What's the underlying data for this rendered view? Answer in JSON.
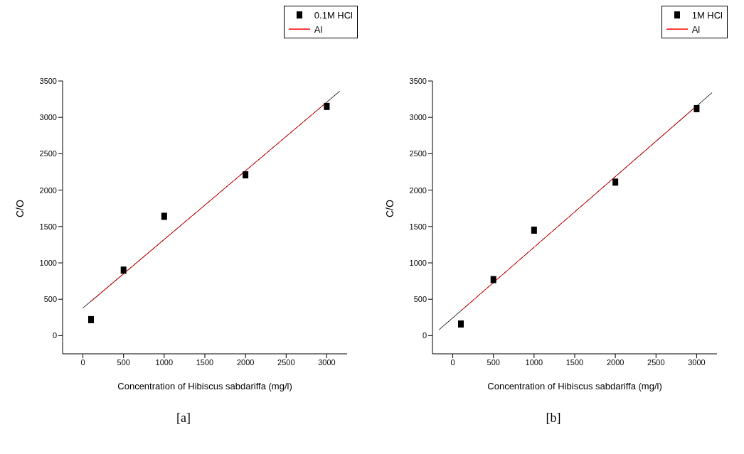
{
  "chart_data": [
    {
      "type": "scatter",
      "xlabel": "Concentration of Hibiscus sabdariffa (mg/l)",
      "ylabel": "C/O",
      "xlim": [
        -250,
        3250
      ],
      "ylim": [
        -250,
        3500
      ],
      "xticks": [
        0,
        500,
        1000,
        1500,
        2000,
        2500,
        3000
      ],
      "yticks": [
        0,
        500,
        1000,
        1500,
        2000,
        2500,
        3000,
        3500
      ],
      "grid": false,
      "legend": "top right",
      "annotations": [
        "[a]"
      ],
      "series": [
        {
          "type": "line",
          "color": "#000000",
          "x": [
            0,
            3160
          ],
          "values": [
            380,
            3360
          ]
        },
        {
          "name": "0.1M HCl",
          "color": "#000000",
          "marker": "square",
          "x": [
            100,
            500,
            1000,
            2000,
            3000
          ],
          "values": [
            220,
            900,
            1640,
            2210,
            3150
          ]
        },
        {
          "type": "line",
          "name": "Al",
          "color": "#ff0000",
          "x": [
            100,
            3000
          ],
          "values": [
            470,
            3210
          ]
        }
      ]
    },
    {
      "type": "scatter",
      "xlabel": "Concentration of Hibiscus sabdariffa (mg/l)",
      "ylabel": "C/O",
      "xlim": [
        -250,
        3250
      ],
      "ylim": [
        -250,
        3500
      ],
      "xticks": [
        0,
        500,
        1000,
        1500,
        2000,
        2500,
        3000
      ],
      "yticks": [
        0,
        500,
        1000,
        1500,
        2000,
        2500,
        3000,
        3500
      ],
      "grid": false,
      "legend": "top right",
      "annotations": [
        "[b]"
      ],
      "series": [
        {
          "type": "line",
          "color": "#000000",
          "x": [
            -170,
            3190
          ],
          "values": [
            80,
            3340
          ]
        },
        {
          "name": "1M HCl",
          "color": "#000000",
          "marker": "square",
          "x": [
            100,
            500,
            1000,
            2000,
            3000
          ],
          "values": [
            160,
            770,
            1450,
            2110,
            3120
          ]
        },
        {
          "type": "line",
          "name": "Al",
          "color": "#ff0000",
          "x": [
            100,
            3000
          ],
          "values": [
            340,
            3160
          ]
        }
      ]
    }
  ]
}
